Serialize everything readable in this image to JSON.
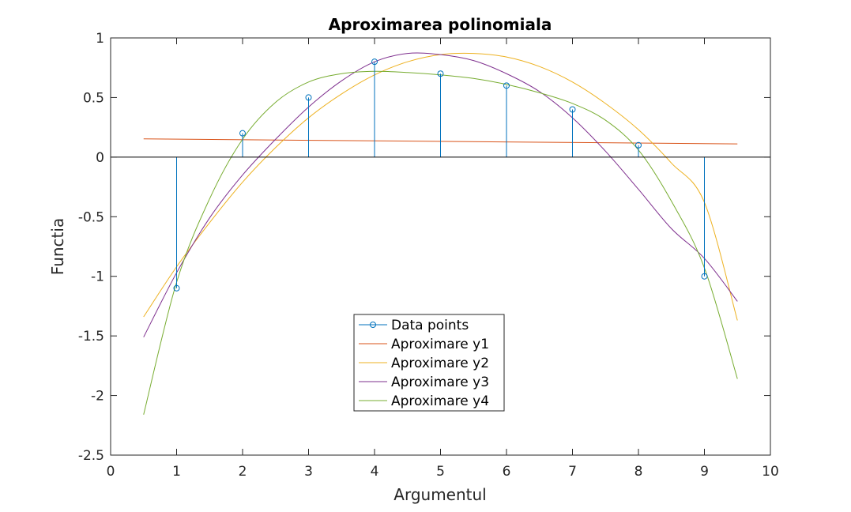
{
  "chart_data": {
    "type": "line",
    "title": "Aproximarea polinomiala",
    "xlabel": "Argumentul",
    "ylabel": "Functia",
    "xlim": [
      0,
      10
    ],
    "ylim": [
      -2.5,
      1
    ],
    "xticks": [
      0,
      1,
      2,
      3,
      4,
      5,
      6,
      7,
      8,
      9,
      10
    ],
    "yticks": [
      -2.5,
      -2,
      -1.5,
      -1,
      -0.5,
      0,
      0.5,
      1
    ],
    "grid": false,
    "legend_position": "lower-center",
    "data_points": {
      "name": "Data points",
      "style": "stem",
      "color": "#0072BD",
      "x": [
        1,
        2,
        3,
        4,
        5,
        6,
        7,
        8,
        9
      ],
      "y": [
        -1.1,
        0.2,
        0.5,
        0.8,
        0.7,
        0.6,
        0.4,
        0.1,
        -1.0
      ]
    },
    "series": [
      {
        "name": "Aproximare y1",
        "color": "#D95319",
        "x": [
          0.5,
          9.5
        ],
        "y": [
          0.153,
          0.111
        ]
      },
      {
        "name": "Aproximare y2",
        "color": "#EDB120",
        "x": [
          0.5,
          1,
          1.5,
          2,
          2.5,
          3,
          3.5,
          4,
          4.5,
          5,
          5.5,
          6,
          6.5,
          7,
          7.5,
          8,
          8.5,
          9,
          9.5
        ],
        "y": [
          -1.34,
          -0.92,
          -0.55,
          -0.21,
          0.08,
          0.33,
          0.53,
          0.69,
          0.8,
          0.86,
          0.87,
          0.84,
          0.76,
          0.63,
          0.45,
          0.23,
          -0.05,
          -0.38,
          -1.37
        ]
      },
      {
        "name": "Aproximare y3",
        "color": "#7E2F8E",
        "x": [
          0.5,
          1,
          1.5,
          2,
          2.5,
          3,
          3.5,
          4,
          4.5,
          5,
          5.5,
          6,
          6.5,
          7,
          7.5,
          8,
          8.5,
          9,
          9.5
        ],
        "y": [
          -1.51,
          -0.97,
          -0.51,
          -0.15,
          0.15,
          0.42,
          0.64,
          0.8,
          0.87,
          0.86,
          0.81,
          0.7,
          0.55,
          0.33,
          0.05,
          -0.27,
          -0.6,
          -0.85,
          -1.21
        ]
      },
      {
        "name": "Aproximare y4",
        "color": "#77AC30",
        "x": [
          0.5,
          1,
          1.5,
          2,
          2.5,
          3,
          3.5,
          4,
          4.5,
          5,
          5.5,
          6,
          6.5,
          7,
          7.5,
          8,
          8.5,
          9,
          9.5
        ],
        "y": [
          -2.16,
          -1.05,
          -0.35,
          0.15,
          0.46,
          0.63,
          0.7,
          0.72,
          0.71,
          0.69,
          0.66,
          0.61,
          0.54,
          0.45,
          0.31,
          0.06,
          -0.37,
          -0.93,
          -1.86
        ]
      }
    ]
  }
}
